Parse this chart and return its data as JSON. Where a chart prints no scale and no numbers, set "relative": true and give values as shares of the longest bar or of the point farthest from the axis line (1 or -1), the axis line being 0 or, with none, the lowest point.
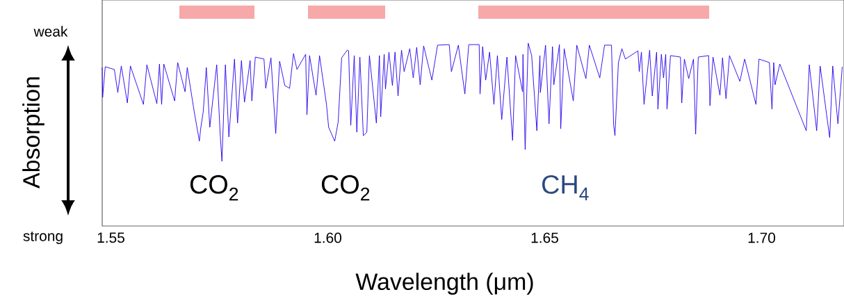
{
  "chart_data": {
    "type": "line",
    "relative": true,
    "color": "#2200ee",
    "xlabel": "Wavelength (μm)",
    "ylabel": "Absorption",
    "xlim": [
      1.548,
      1.719
    ],
    "xticks": [
      1.55,
      {
        "value": 1.6,
        "label": "1.60"
      },
      1.65,
      {
        "value": 1.7,
        "label": "1.70"
      }
    ],
    "annotations": [
      "weak",
      "strong",
      "CO$_{2}$",
      "CO$_{2}$",
      "CH$_{4}$"
    ],
    "x": [
      1.548,
      1.5481,
      1.5487,
      1.5508,
      1.5516,
      1.5524,
      1.5538,
      1.5545,
      1.5575,
      1.5583,
      1.5606,
      1.5612,
      1.5617,
      1.5622,
      1.5647,
      1.5654,
      1.5671,
      1.5676,
      1.5692,
      1.5704,
      1.5707,
      1.5713,
      1.572,
      1.5728,
      1.5744,
      1.5752,
      1.5756,
      1.5764,
      1.5772,
      1.5785,
      1.5792,
      1.5801,
      1.5808,
      1.5821,
      1.5825,
      1.5833,
      1.5853,
      1.5857,
      1.5869,
      1.588,
      1.5889,
      1.5901,
      1.5912,
      1.5921,
      1.5929,
      1.5949,
      1.5952,
      1.5958,
      1.5973,
      1.5981,
      1.5997,
      1.6002,
      1.6016,
      1.6024,
      1.6032,
      1.6045,
      1.6048,
      1.6053,
      1.6061,
      1.6067,
      1.6074,
      1.6082,
      1.609,
      1.6096,
      1.6112,
      1.6119,
      1.6122,
      1.613,
      1.6133,
      1.6141,
      1.6149,
      1.6155,
      1.6162,
      1.617,
      1.6176,
      1.6189,
      1.6197,
      1.6205,
      1.6213,
      1.6221,
      1.624,
      1.6253,
      1.628,
      1.6285,
      1.6301,
      1.6316,
      1.6325,
      1.6341,
      1.6349,
      1.6351,
      1.6357,
      1.6364,
      1.6373,
      1.6383,
      1.6391,
      1.6401,
      1.6413,
      1.6426,
      1.6433,
      1.6449,
      1.645,
      1.6455,
      1.6462,
      1.647,
      1.6482,
      1.6489,
      1.649,
      1.6502,
      1.651,
      1.6518,
      1.6521,
      1.6534,
      1.6537,
      1.6545,
      1.6566,
      1.6574,
      1.6595,
      1.6603,
      1.6627,
      1.6638,
      1.6654,
      1.6659,
      1.6662,
      1.667,
      1.6678,
      1.6686,
      1.6715,
      1.6718,
      1.6723,
      1.6729,
      1.6742,
      1.6748,
      1.6758,
      1.6761,
      1.6769,
      1.6774,
      1.6779,
      1.6782,
      1.679,
      1.6813,
      1.6816,
      1.6822,
      1.6832,
      1.6843,
      1.6848,
      1.6854,
      1.6878,
      1.6881,
      1.6888,
      1.6904,
      1.691,
      1.6918,
      1.6926,
      1.695,
      1.6961,
      1.6987,
      1.6994,
      1.7018,
      1.7024,
      1.7028,
      1.7031,
      1.7042,
      1.7103,
      1.711,
      1.7127,
      1.7135,
      1.7157,
      1.7164,
      1.7176,
      1.7186
    ],
    "values": [
      0.867,
      0.703,
      0.871,
      0.856,
      0.73,
      0.875,
      0.673,
      0.875,
      0.665,
      0.882,
      0.669,
      0.886,
      0.665,
      0.886,
      0.684,
      0.894,
      0.734,
      0.867,
      0.627,
      0.464,
      0.532,
      0.627,
      0.867,
      0.54,
      0.882,
      0.502,
      0.354,
      0.882,
      0.487,
      0.913,
      0.563,
      0.905,
      0.677,
      0.905,
      0.684,
      0.924,
      0.913,
      0.753,
      0.92,
      0.506,
      0.901,
      0.768,
      0.753,
      0.943,
      0.856,
      0.939,
      0.608,
      0.932,
      0.715,
      0.932,
      0.665,
      0.54,
      0.464,
      0.57,
      0.92,
      0.962,
      0.958,
      0.551,
      0.932,
      0.513,
      0.924,
      0.494,
      0.513,
      0.932,
      0.563,
      0.932,
      0.597,
      0.939,
      0.749,
      0.951,
      0.768,
      0.951,
      0.711,
      0.962,
      0.844,
      0.97,
      0.81,
      0.977,
      0.772,
      0.985,
      0.798,
      0.989,
      0.992,
      0.844,
      0.989,
      0.722,
      0.992,
      0.992,
      0.992,
      0.722,
      0.981,
      0.798,
      0.951,
      0.665,
      0.932,
      0.582,
      0.924,
      0.468,
      0.932,
      0.734,
      0.939,
      0.418,
      1.0,
      0.932,
      0.521,
      0.932,
      0.73,
      0.989,
      0.559,
      0.981,
      0.772,
      0.992,
      0.532,
      0.97,
      0.684,
      0.989,
      0.806,
      0.989,
      0.81,
      0.989,
      0.989,
      0.551,
      0.494,
      0.894,
      0.97,
      0.913,
      0.958,
      0.844,
      0.951,
      0.665,
      0.962,
      0.711,
      0.951,
      0.639,
      0.939,
      0.81,
      0.939,
      0.639,
      0.932,
      0.924,
      0.673,
      0.913,
      0.806,
      0.913,
      0.502,
      0.924,
      0.932,
      0.658,
      0.924,
      0.715,
      0.92,
      0.696,
      0.932,
      0.791,
      0.913,
      0.665,
      0.913,
      0.894,
      0.639,
      0.894,
      0.772,
      0.886,
      0.521,
      0.882,
      0.521,
      0.875,
      0.483,
      0.875,
      0.559,
      0.871
    ]
  }
}
